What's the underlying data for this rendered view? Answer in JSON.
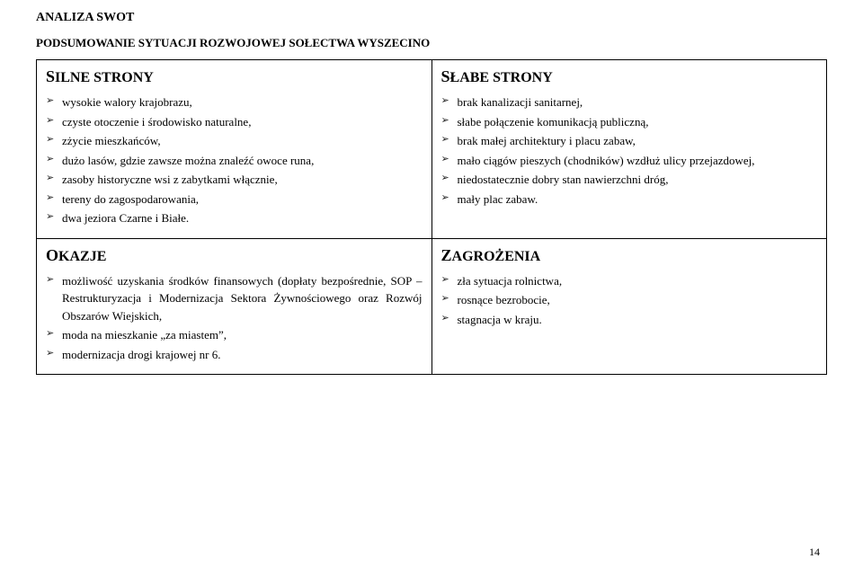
{
  "page": {
    "title": "ANALIZA SWOT",
    "subtitle": "PODSUMOWANIE SYTUACJI ROZWOJOWEJ SOŁECTWA WYSZECINO",
    "page_number": "14"
  },
  "quadrants": {
    "strengths": {
      "title_cap": "S",
      "title_rest": "ILNE STRONY",
      "items": [
        "wysokie walory krajobrazu,",
        "czyste otoczenie i środowisko naturalne,",
        "zżycie mieszkańców,",
        "dużo lasów, gdzie zawsze można znaleźć owoce runa,",
        "zasoby historyczne wsi z zabytkami włącznie,",
        "tereny do zagospodarowania,",
        "dwa jeziora Czarne i Białe."
      ]
    },
    "weaknesses": {
      "title_cap": "S",
      "title_rest": "ŁABE STRONY",
      "items": [
        "brak kanalizacji sanitarnej,",
        "słabe połączenie komunikacją publiczną,",
        "brak małej architektury i placu zabaw,",
        "mało ciągów pieszych (chodników) wzdłuż ulicy przejazdowej,",
        "niedostatecznie dobry  stan nawierzchni dróg,",
        "mały plac zabaw."
      ]
    },
    "opportunities": {
      "title_cap": "O",
      "title_rest": "KAZJE",
      "items": [
        "możliwość uzyskania środków finansowych (dopłaty bezpośrednie, SOP – Restrukturyzacja i Modernizacja Sektora Żywnościowego oraz Rozwój Obszarów Wiejskich,",
        "moda na mieszkanie „za miastem”,",
        "modernizacja drogi krajowej nr 6."
      ]
    },
    "threats": {
      "title_cap": "Z",
      "title_rest": "AGROŻENIA",
      "items": [
        "zła sytuacja rolnictwa,",
        "rosnące bezrobocie,",
        "stagnacja w kraju."
      ]
    }
  },
  "colors": {
    "text": "#000000",
    "background": "#ffffff",
    "border": "#000000"
  },
  "typography": {
    "base_family": "Georgia, serif",
    "title_size_pt": 14,
    "subtitle_size_pt": 13,
    "quad_title_size_pt": 16,
    "body_size_pt": 13
  }
}
